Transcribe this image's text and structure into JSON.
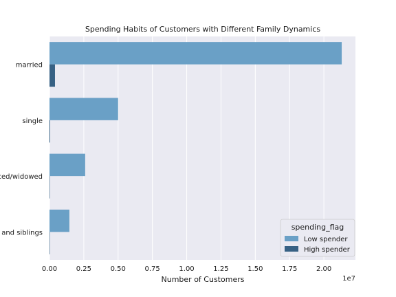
{
  "chart_data": {
    "type": "bar",
    "orientation": "horizontal",
    "title": "Spending Habits of Customers with Different Family Dynamics",
    "xlabel": "Number of Customers",
    "ylabel": "",
    "x_multiplier_label": "1e7",
    "xlim": [
      0,
      2.23
    ],
    "x_ticks": [
      "0.00",
      "0.25",
      "0.50",
      "0.75",
      "1.00",
      "1.25",
      "1.50",
      "1.75",
      "2.00"
    ],
    "categories": [
      "married",
      "single",
      "ced/widowed",
      "s and siblings"
    ],
    "series": [
      {
        "name": "Low spender",
        "values": [
          2.13,
          0.5,
          0.26,
          0.145
        ]
      },
      {
        "name": "High spender",
        "values": [
          0.04,
          0.005,
          0.003,
          0.002
        ]
      }
    ],
    "legend": {
      "title": "spending_flag",
      "position": "lower-right"
    },
    "grid": true,
    "colors": {
      "background": "#eaeaf2",
      "grid": "#ffffff",
      "low_spender": "#6aa0c6",
      "high_spender": "#376184"
    }
  }
}
